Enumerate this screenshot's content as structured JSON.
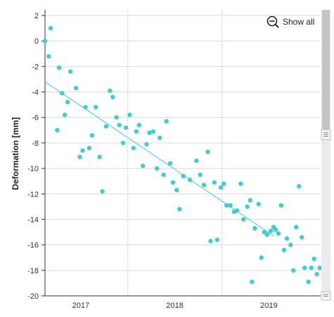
{
  "toolbar": {
    "show_all_label": "Show all",
    "zoom_icon": "zoom-out-icon"
  },
  "colors": {
    "point": "#3ecdd0",
    "trend": "#3ecdd0",
    "grid": "#d9d9d9",
    "axis": "#333333",
    "scrollbar_track": "#e6e6e6",
    "scrollbar_thumb": "#bdbdbd"
  },
  "chart_data": {
    "type": "scatter",
    "title": "",
    "xlabel": "",
    "ylabel": "Deformation [mm]",
    "xlim": [
      2016.62,
      2019.55
    ],
    "ylim": [
      -20,
      2
    ],
    "yticks": [
      2,
      0,
      -2,
      -4,
      -6,
      -8,
      -10,
      -12,
      -14,
      -16,
      -18,
      -20
    ],
    "xticks": [
      {
        "label": "2017",
        "value": 2017.0
      },
      {
        "label": "2018",
        "value": 2018.0
      },
      {
        "label": "2019",
        "value": 2019.0
      }
    ],
    "xgrid": [
      2017.5,
      2018.5
    ],
    "grid": true,
    "legend": "none",
    "trendline": {
      "x": [
        2016.62,
        2019.05
      ],
      "y": [
        -3.2,
        -15.3
      ]
    },
    "points": [
      [
        2016.62,
        0.0
      ],
      [
        2016.66,
        -1.2
      ],
      [
        2016.68,
        1.0
      ],
      [
        2016.75,
        -7.0
      ],
      [
        2016.77,
        -2.1
      ],
      [
        2016.8,
        -4.1
      ],
      [
        2016.83,
        -5.8
      ],
      [
        2016.86,
        -4.8
      ],
      [
        2016.89,
        -2.4
      ],
      [
        2016.95,
        -3.7
      ],
      [
        2016.99,
        -9.1
      ],
      [
        2017.02,
        -8.6
      ],
      [
        2017.05,
        -5.2
      ],
      [
        2017.09,
        -8.4
      ],
      [
        2017.12,
        -7.4
      ],
      [
        2017.16,
        -5.2
      ],
      [
        2017.2,
        -9.1
      ],
      [
        2017.23,
        -11.8
      ],
      [
        2017.27,
        -6.7
      ],
      [
        2017.31,
        -3.9
      ],
      [
        2017.34,
        -4.4
      ],
      [
        2017.38,
        -6.0
      ],
      [
        2017.41,
        -6.6
      ],
      [
        2017.45,
        -8.0
      ],
      [
        2017.48,
        -6.8
      ],
      [
        2017.52,
        -5.8
      ],
      [
        2017.56,
        -8.4
      ],
      [
        2017.59,
        -7.1
      ],
      [
        2017.62,
        -6.6
      ],
      [
        2017.66,
        -9.8
      ],
      [
        2017.7,
        -8.1
      ],
      [
        2017.73,
        -7.2
      ],
      [
        2017.77,
        -7.1
      ],
      [
        2017.81,
        -10.0
      ],
      [
        2017.84,
        -7.6
      ],
      [
        2017.88,
        -10.5
      ],
      [
        2017.91,
        -6.3
      ],
      [
        2017.95,
        -9.6
      ],
      [
        2017.98,
        -11.1
      ],
      [
        2018.02,
        -11.7
      ],
      [
        2018.05,
        -13.2
      ],
      [
        2018.09,
        -10.6
      ],
      [
        2018.16,
        -10.9
      ],
      [
        2018.23,
        -9.4
      ],
      [
        2018.27,
        -10.5
      ],
      [
        2018.31,
        -11.3
      ],
      [
        2018.35,
        -8.7
      ],
      [
        2018.38,
        -15.7
      ],
      [
        2018.42,
        -11.1
      ],
      [
        2018.45,
        -15.6
      ],
      [
        2018.49,
        -11.5
      ],
      [
        2018.52,
        -11.2
      ],
      [
        2018.55,
        -12.9
      ],
      [
        2018.59,
        -12.9
      ],
      [
        2018.63,
        -13.4
      ],
      [
        2018.66,
        -13.3
      ],
      [
        2018.7,
        -11.2
      ],
      [
        2018.73,
        -14.0
      ],
      [
        2018.77,
        -13.0
      ],
      [
        2018.8,
        -12.5
      ],
      [
        2018.82,
        -18.9
      ],
      [
        2018.85,
        -14.7
      ],
      [
        2018.89,
        -12.8
      ],
      [
        2018.92,
        -17.0
      ],
      [
        2018.95,
        -15.0
      ],
      [
        2018.98,
        -15.2
      ],
      [
        2019.02,
        -14.9
      ],
      [
        2019.05,
        -14.6
      ],
      [
        2019.07,
        -14.8
      ],
      [
        2019.1,
        -15.1
      ],
      [
        2019.13,
        -12.9
      ],
      [
        2019.16,
        -16.4
      ],
      [
        2019.19,
        -15.5
      ],
      [
        2019.23,
        -16.0
      ],
      [
        2019.26,
        -18.0
      ],
      [
        2019.29,
        -14.6
      ],
      [
        2019.32,
        -11.4
      ],
      [
        2019.35,
        -15.4
      ],
      [
        2019.38,
        -17.8
      ],
      [
        2019.42,
        -18.9
      ],
      [
        2019.45,
        -17.8
      ],
      [
        2019.48,
        -17.1
      ],
      [
        2019.51,
        -18.3
      ],
      [
        2019.54,
        -17.8
      ]
    ]
  }
}
